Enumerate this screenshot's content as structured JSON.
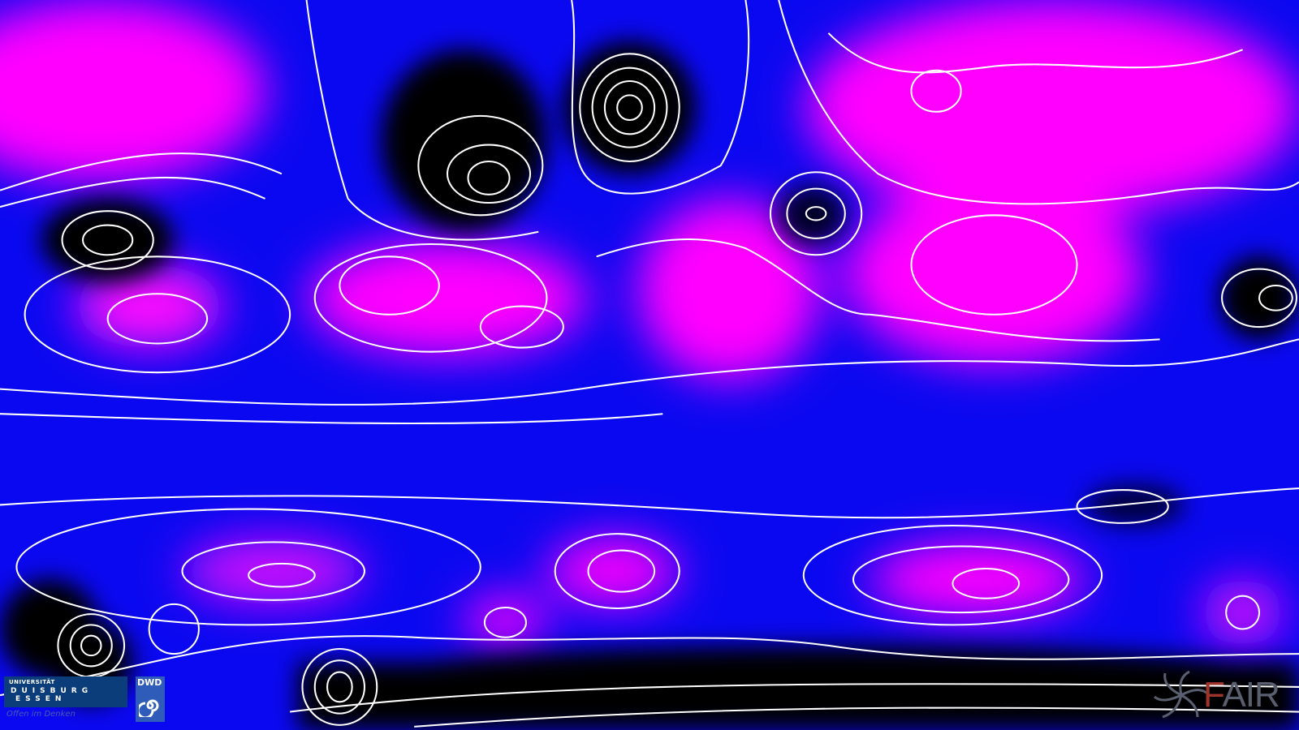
{
  "map": {
    "projection": "equirectangular world",
    "colors": {
      "low": "#000000",
      "mid": "#0a08f0",
      "high": "#ff00ff",
      "contour": "#ffffff"
    }
  },
  "logos": {
    "ude": {
      "line1": "UNIVERSITÄT",
      "line2": "DUISBURG",
      "line3": "ESSEN",
      "tagline": "Offen im Denken"
    },
    "dwd": {
      "text": "DWD"
    },
    "fair": {
      "first": "F",
      "rest": "AIR"
    }
  }
}
